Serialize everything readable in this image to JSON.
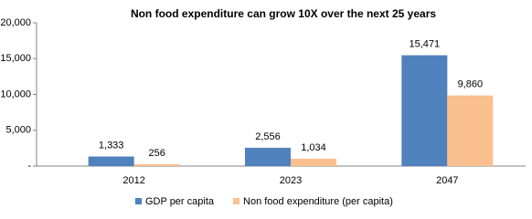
{
  "chart_data": {
    "type": "bar",
    "title": "Non food expenditure can grow 10X over the next 25 years",
    "categories": [
      "2012",
      "2023",
      "2047"
    ],
    "series": [
      {
        "name": "GDP per capita",
        "color": "#4f81bd",
        "values": [
          1333,
          2556,
          15471
        ],
        "value_labels": [
          "1,333",
          "2,556",
          "15,471"
        ]
      },
      {
        "name": "Non food expenditure (per capita)",
        "color": "#fac090",
        "values": [
          256,
          1034,
          9860
        ],
        "value_labels": [
          "256",
          "1,034",
          "9,860"
        ]
      }
    ],
    "ylim": [
      0,
      20000
    ],
    "yticks": [
      {
        "value": 0,
        "label": "-"
      },
      {
        "value": 5000,
        "label": "5,000"
      },
      {
        "value": 10000,
        "label": "10,000"
      },
      {
        "value": 15000,
        "label": "15,000"
      },
      {
        "value": 20000,
        "label": "20,000"
      }
    ],
    "grid": false,
    "legend": "bottom"
  }
}
